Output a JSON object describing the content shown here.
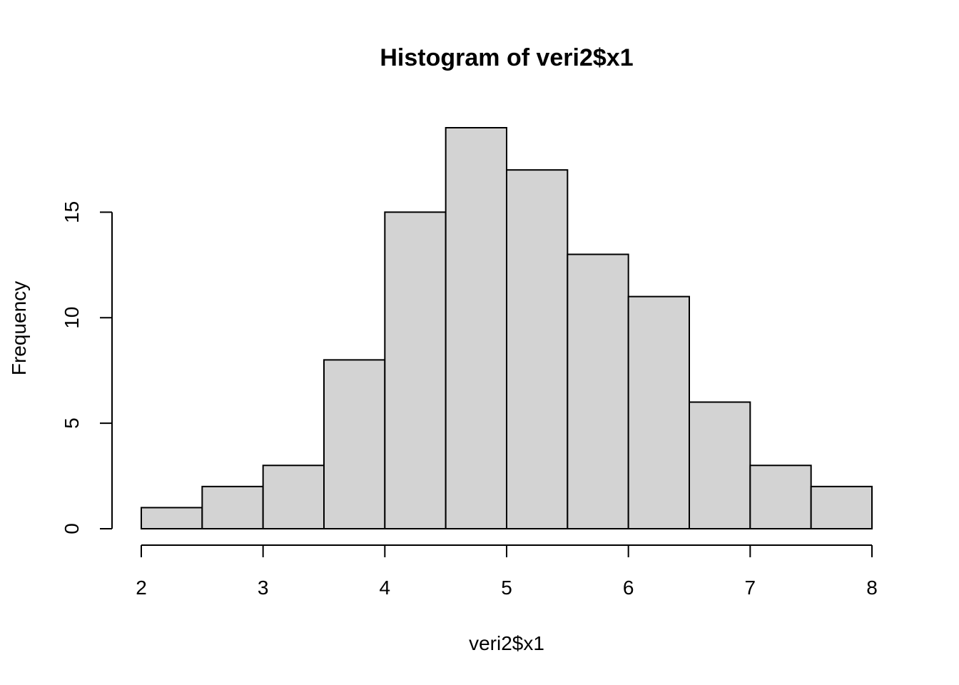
{
  "chart_data": {
    "type": "bar",
    "title": "Histogram of veri2$x1",
    "xlabel": "veri2$x1",
    "ylabel": "Frequency",
    "bins": [
      {
        "start": 2.0,
        "end": 2.5,
        "count": 1
      },
      {
        "start": 2.5,
        "end": 3.0,
        "count": 2
      },
      {
        "start": 3.0,
        "end": 3.5,
        "count": 3
      },
      {
        "start": 3.5,
        "end": 4.0,
        "count": 8
      },
      {
        "start": 4.0,
        "end": 4.5,
        "count": 15
      },
      {
        "start": 4.5,
        "end": 5.0,
        "count": 19
      },
      {
        "start": 5.0,
        "end": 5.5,
        "count": 17
      },
      {
        "start": 5.5,
        "end": 6.0,
        "count": 13
      },
      {
        "start": 6.0,
        "end": 6.5,
        "count": 11
      },
      {
        "start": 6.5,
        "end": 7.0,
        "count": 6
      },
      {
        "start": 7.0,
        "end": 7.5,
        "count": 3
      },
      {
        "start": 7.5,
        "end": 8.0,
        "count": 2
      }
    ],
    "x_ticks": [
      2,
      3,
      4,
      5,
      6,
      7,
      8
    ],
    "y_ticks": [
      0,
      5,
      10,
      15
    ],
    "xlim": [
      2,
      8
    ],
    "ylim": [
      0,
      19
    ],
    "grid": false,
    "bar_fill": "#d3d3d3",
    "bar_stroke": "#000000"
  }
}
